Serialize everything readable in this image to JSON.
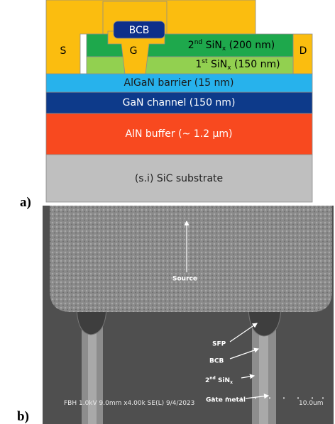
{
  "panel_a": {
    "tag": "a)",
    "layers": {
      "source": "S",
      "drain": "D",
      "bcb": "BCB",
      "gate": "G",
      "sin2": [
        "2",
        "nd",
        " SiN",
        "x",
        " (200 nm)"
      ],
      "sin1": [
        "1",
        "st",
        " SiN",
        "x",
        " (150 nm)"
      ],
      "algan": "AlGaN barrier (15 nm)",
      "gan": "GaN channel (150 nm)",
      "aln": "AlN buffer (~ 1.2 µm)",
      "sic": "(s.i) SiC substrate"
    }
  },
  "panel_b": {
    "tag": "b)",
    "labels": {
      "source": "Source",
      "sfp": "SFP",
      "bcb": "BCB",
      "sin": [
        "2",
        "nd",
        " SiN",
        "x"
      ],
      "gate_metal": "Gate metal"
    },
    "info": "FBH 1.0kV 9.0mm x4.00k SE(L) 9/4/2023",
    "scale": "10.0um"
  }
}
